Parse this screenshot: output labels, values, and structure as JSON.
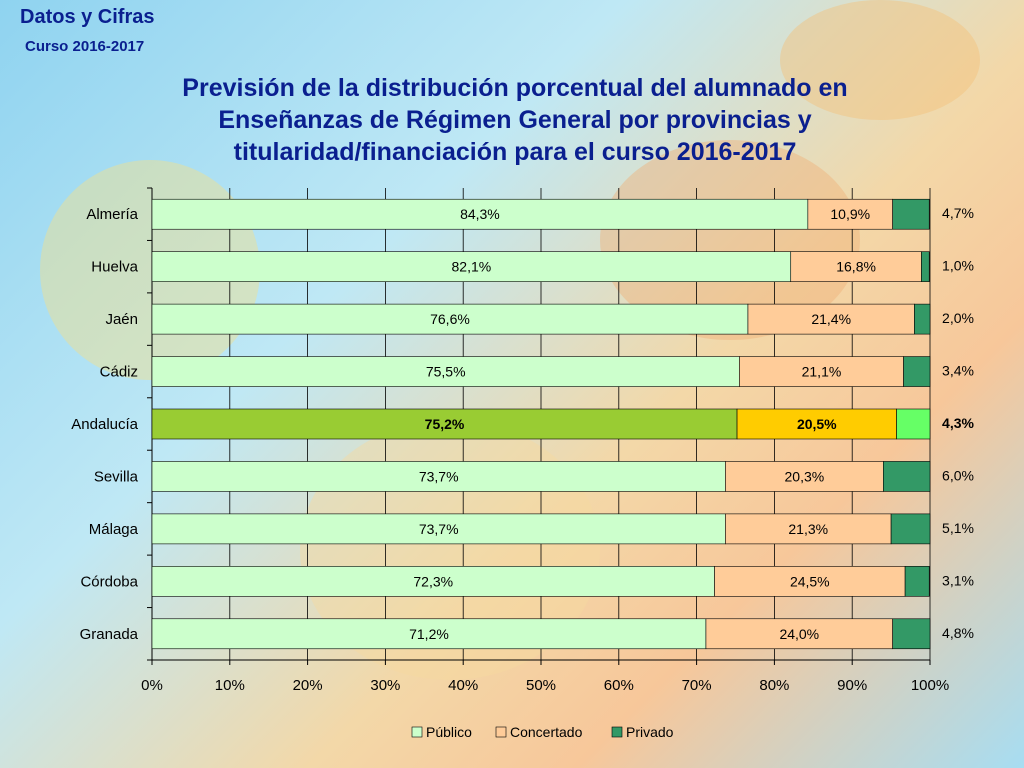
{
  "header": {
    "title": "Datos y Cifras",
    "subtitle": "Curso 2016-2017"
  },
  "main_title_lines": [
    "Previsión de la distribución porcentual del alumnado en",
    "Enseñanzas de Régimen General por provincias y",
    "titularidad/financiación para el curso 2016-2017"
  ],
  "chart_data": {
    "type": "bar",
    "orientation": "horizontal",
    "stacked": true,
    "title": "Previsión de la distribución porcentual del alumnado en Enseñanzas de Régimen General por provincias y titularidad/financiación para el curso 2016-2017",
    "categories": [
      "Almería",
      "Huelva",
      "Jaén",
      "Cádiz",
      "Andalucía",
      "Sevilla",
      "Málaga",
      "Córdoba",
      "Granada"
    ],
    "highlight_category": "Andalucía",
    "series": [
      {
        "name": "Público",
        "values": [
          84.3,
          82.1,
          76.6,
          75.5,
          75.2,
          73.7,
          73.7,
          72.3,
          71.2
        ],
        "labels": [
          "84,3%",
          "82,1%",
          "76,6%",
          "75,5%",
          "75,2%",
          "73,7%",
          "73,7%",
          "72,3%",
          "71,2%"
        ],
        "color": "#ccffcc",
        "highlight_color": "#99cc33"
      },
      {
        "name": "Concertado",
        "values": [
          10.9,
          16.8,
          21.4,
          21.1,
          20.5,
          20.3,
          21.3,
          24.5,
          24.0
        ],
        "labels": [
          "10,9%",
          "16,8%",
          "21,4%",
          "21,1%",
          "20,5%",
          "20,3%",
          "21,3%",
          "24,5%",
          "24,0%"
        ],
        "color": "#ffcc99",
        "highlight_color": "#ffcc00"
      },
      {
        "name": "Privado",
        "values": [
          4.7,
          1.0,
          2.0,
          3.4,
          4.3,
          6.0,
          5.1,
          3.1,
          4.8
        ],
        "labels": [
          "4,7%",
          "1,0%",
          "2,0%",
          "3,4%",
          "4,3%",
          "6,0%",
          "5,1%",
          "3,1%",
          "4,8%"
        ],
        "color": "#339966",
        "highlight_color": "#66ff66"
      }
    ],
    "xlim": [
      0,
      100
    ],
    "x_ticks": [
      "0%",
      "10%",
      "20%",
      "30%",
      "40%",
      "50%",
      "60%",
      "70%",
      "80%",
      "90%",
      "100%"
    ],
    "grid": true,
    "legend_position": "bottom"
  }
}
